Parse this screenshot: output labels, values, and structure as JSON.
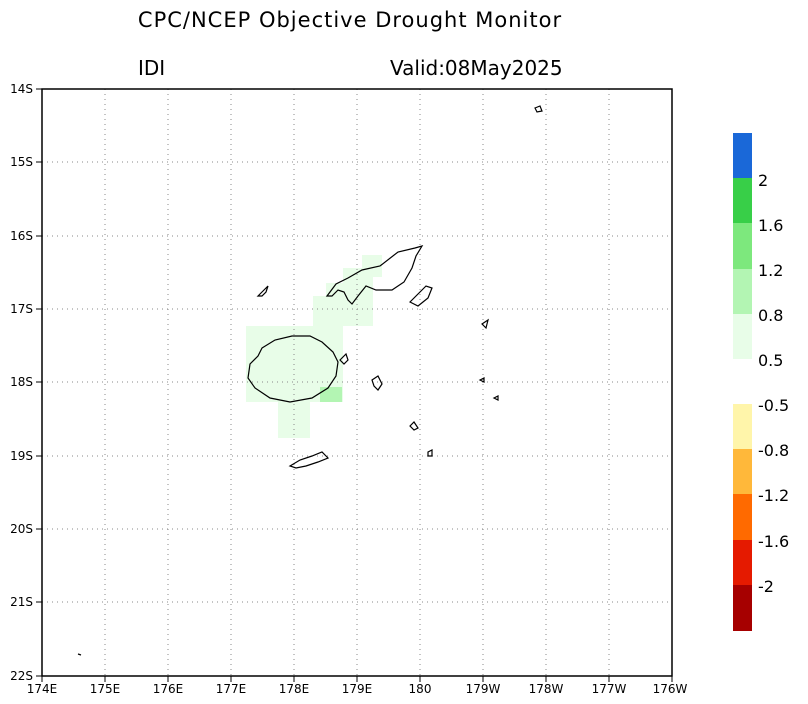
{
  "header": {
    "title": "CPC/NCEP Objective Drought Monitor",
    "variable": "IDI",
    "valid": "Valid:08May2025"
  },
  "map": {
    "lon_range": [
      174,
      184
    ],
    "lat_range": [
      -22,
      -14
    ],
    "lon_ticks": [
      "174E",
      "175E",
      "176E",
      "177E",
      "178E",
      "179E",
      "180",
      "179W",
      "178W",
      "177W",
      "176W"
    ],
    "lat_ticks": [
      "14S",
      "15S",
      "16S",
      "17S",
      "18S",
      "19S",
      "20S",
      "21S",
      "22S"
    ],
    "grid": "dotted",
    "region": "Fiji"
  },
  "legend": {
    "positive": {
      "colors": [
        "#1a68d8",
        "#38cf48",
        "#7de87d",
        "#b3f5b3",
        "#e8fde8"
      ],
      "labels": [
        "2",
        "1.6",
        "1.2",
        "0.8",
        "0.5"
      ]
    },
    "negative": {
      "colors": [
        "#fff5aa",
        "#ffb83a",
        "#ff6a00",
        "#e51a00",
        "#a60000"
      ],
      "labels": [
        "-0.5",
        "-0.8",
        "-1.2",
        "-1.6",
        "-2"
      ]
    }
  },
  "shading": {
    "light_green": "#e8fde8",
    "mid_green": "#b3f5b3"
  }
}
